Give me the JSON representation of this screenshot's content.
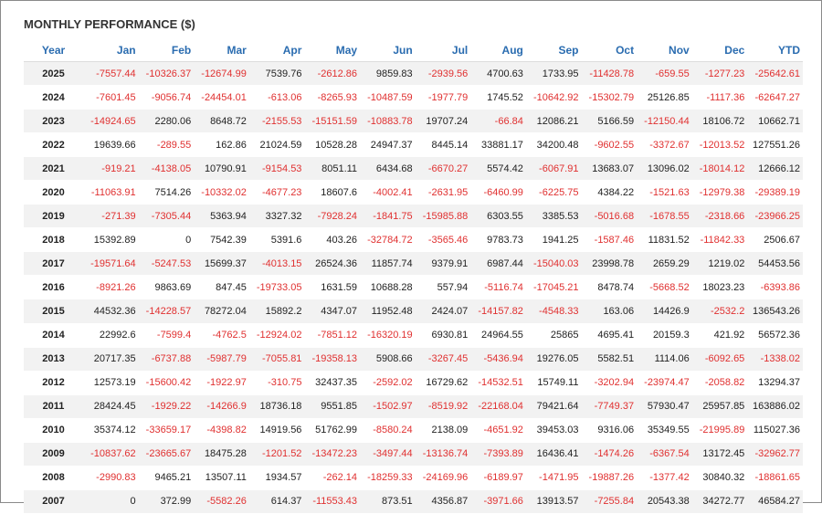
{
  "header": {
    "title": "MONTHLY PERFORMANCE ($)"
  },
  "table": {
    "columns": [
      "Year",
      "Jan",
      "Feb",
      "Mar",
      "Apr",
      "May",
      "Jun",
      "Jul",
      "Aug",
      "Sep",
      "Oct",
      "Nov",
      "Dec",
      "YTD"
    ],
    "rows": [
      [
        "2025",
        "-7557.44",
        "-10326.37",
        "-12674.99",
        "7539.76",
        "-2612.86",
        "9859.83",
        "-2939.56",
        "4700.63",
        "1733.95",
        "-11428.78",
        "-659.55",
        "-1277.23",
        "-25642.61"
      ],
      [
        "2024",
        "-7601.45",
        "-9056.74",
        "-24454.01",
        "-613.06",
        "-8265.93",
        "-10487.59",
        "-1977.79",
        "1745.52",
        "-10642.92",
        "-15302.79",
        "25126.85",
        "-1117.36",
        "-62647.27"
      ],
      [
        "2023",
        "-14924.65",
        "2280.06",
        "8648.72",
        "-2155.53",
        "-15151.59",
        "-10883.78",
        "19707.24",
        "-66.84",
        "12086.21",
        "5166.59",
        "-12150.44",
        "18106.72",
        "10662.71"
      ],
      [
        "2022",
        "19639.66",
        "-289.55",
        "162.86",
        "21024.59",
        "10528.28",
        "24947.37",
        "8445.14",
        "33881.17",
        "34200.48",
        "-9602.55",
        "-3372.67",
        "-12013.52",
        "127551.26"
      ],
      [
        "2021",
        "-919.21",
        "-4138.05",
        "10790.91",
        "-9154.53",
        "8051.11",
        "6434.68",
        "-6670.27",
        "5574.42",
        "-6067.91",
        "13683.07",
        "13096.02",
        "-18014.12",
        "12666.12"
      ],
      [
        "2020",
        "-11063.91",
        "7514.26",
        "-10332.02",
        "-4677.23",
        "18607.6",
        "-4002.41",
        "-2631.95",
        "-6460.99",
        "-6225.75",
        "4384.22",
        "-1521.63",
        "-12979.38",
        "-29389.19"
      ],
      [
        "2019",
        "-271.39",
        "-7305.44",
        "5363.94",
        "3327.32",
        "-7928.24",
        "-1841.75",
        "-15985.88",
        "6303.55",
        "3385.53",
        "-5016.68",
        "-1678.55",
        "-2318.66",
        "-23966.25"
      ],
      [
        "2018",
        "15392.89",
        "0",
        "7542.39",
        "5391.6",
        "403.26",
        "-32784.72",
        "-3565.46",
        "9783.73",
        "1941.25",
        "-1587.46",
        "11831.52",
        "-11842.33",
        "2506.67"
      ],
      [
        "2017",
        "-19571.64",
        "-5247.53",
        "15699.37",
        "-4013.15",
        "26524.36",
        "11857.74",
        "9379.91",
        "6987.44",
        "-15040.03",
        "23998.78",
        "2659.29",
        "1219.02",
        "54453.56"
      ],
      [
        "2016",
        "-8921.26",
        "9863.69",
        "847.45",
        "-19733.05",
        "1631.59",
        "10688.28",
        "557.94",
        "-5116.74",
        "-17045.21",
        "8478.74",
        "-5668.52",
        "18023.23",
        "-6393.86"
      ],
      [
        "2015",
        "44532.36",
        "-14228.57",
        "78272.04",
        "15892.2",
        "4347.07",
        "11952.48",
        "2424.07",
        "-14157.82",
        "-4548.33",
        "163.06",
        "14426.9",
        "-2532.2",
        "136543.26"
      ],
      [
        "2014",
        "22992.6",
        "-7599.4",
        "-4762.5",
        "-12924.02",
        "-7851.12",
        "-16320.19",
        "6930.81",
        "24964.55",
        "25865",
        "4695.41",
        "20159.3",
        "421.92",
        "56572.36"
      ],
      [
        "2013",
        "20717.35",
        "-6737.88",
        "-5987.79",
        "-7055.81",
        "-19358.13",
        "5908.66",
        "-3267.45",
        "-5436.94",
        "19276.05",
        "5582.51",
        "1114.06",
        "-6092.65",
        "-1338.02"
      ],
      [
        "2012",
        "12573.19",
        "-15600.42",
        "-1922.97",
        "-310.75",
        "32437.35",
        "-2592.02",
        "16729.62",
        "-14532.51",
        "15749.11",
        "-3202.94",
        "-23974.47",
        "-2058.82",
        "13294.37"
      ],
      [
        "2011",
        "28424.45",
        "-1929.22",
        "-14266.9",
        "18736.18",
        "9551.85",
        "-1502.97",
        "-8519.92",
        "-22168.04",
        "79421.64",
        "-7749.37",
        "57930.47",
        "25957.85",
        "163886.02"
      ],
      [
        "2010",
        "35374.12",
        "-33659.17",
        "-4398.82",
        "14919.56",
        "51762.99",
        "-8580.24",
        "2138.09",
        "-4651.92",
        "39453.03",
        "9316.06",
        "35349.55",
        "-21995.89",
        "115027.36"
      ],
      [
        "2009",
        "-10837.62",
        "-23665.67",
        "18475.28",
        "-1201.52",
        "-13472.23",
        "-3497.44",
        "-13136.74",
        "-7393.89",
        "16436.41",
        "-1474.26",
        "-6367.54",
        "13172.45",
        "-32962.77"
      ],
      [
        "2008",
        "-2990.83",
        "9465.21",
        "13507.11",
        "1934.57",
        "-262.14",
        "-18259.33",
        "-24169.96",
        "-6189.97",
        "-1471.95",
        "-19887.26",
        "-1377.42",
        "30840.32",
        "-18861.65"
      ],
      [
        "2007",
        "0",
        "372.99",
        "-5582.26",
        "614.37",
        "-11553.43",
        "873.51",
        "4356.87",
        "-3971.66",
        "13913.57",
        "-7255.84",
        "20543.38",
        "34272.77",
        "46584.27"
      ]
    ]
  }
}
